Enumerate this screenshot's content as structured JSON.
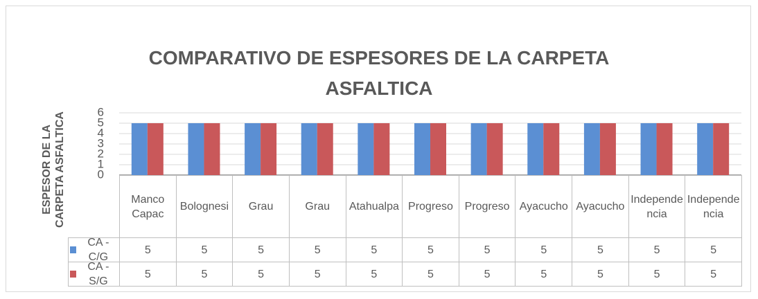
{
  "chart_data": {
    "type": "bar",
    "title": "COMPARATIVO DE ESPESORES DE LA CARPETA ASFALTICA",
    "y_label": "ESPESOR DE LA CARPETA ASFALTICA",
    "categories": [
      "Manco Capac",
      "Bolognesi",
      "Grau",
      "Grau",
      "Atahualpa",
      "Progreso",
      "Progreso",
      "Ayacucho",
      "Ayacucho",
      "Independencia",
      "Independencia"
    ],
    "series": [
      {
        "name": "CA - C/G",
        "color": "#5b8fd3",
        "values": [
          5,
          5,
          5,
          5,
          5,
          5,
          5,
          5,
          5,
          5,
          5
        ]
      },
      {
        "name": "CA - S/G",
        "color": "#c9585a",
        "values": [
          5,
          5,
          5,
          5,
          5,
          5,
          5,
          5,
          5,
          5,
          5
        ]
      }
    ],
    "ylim": [
      0,
      6
    ],
    "yticks": [
      0,
      1,
      2,
      3,
      4,
      5,
      6
    ],
    "grid": true,
    "data_table": true
  }
}
